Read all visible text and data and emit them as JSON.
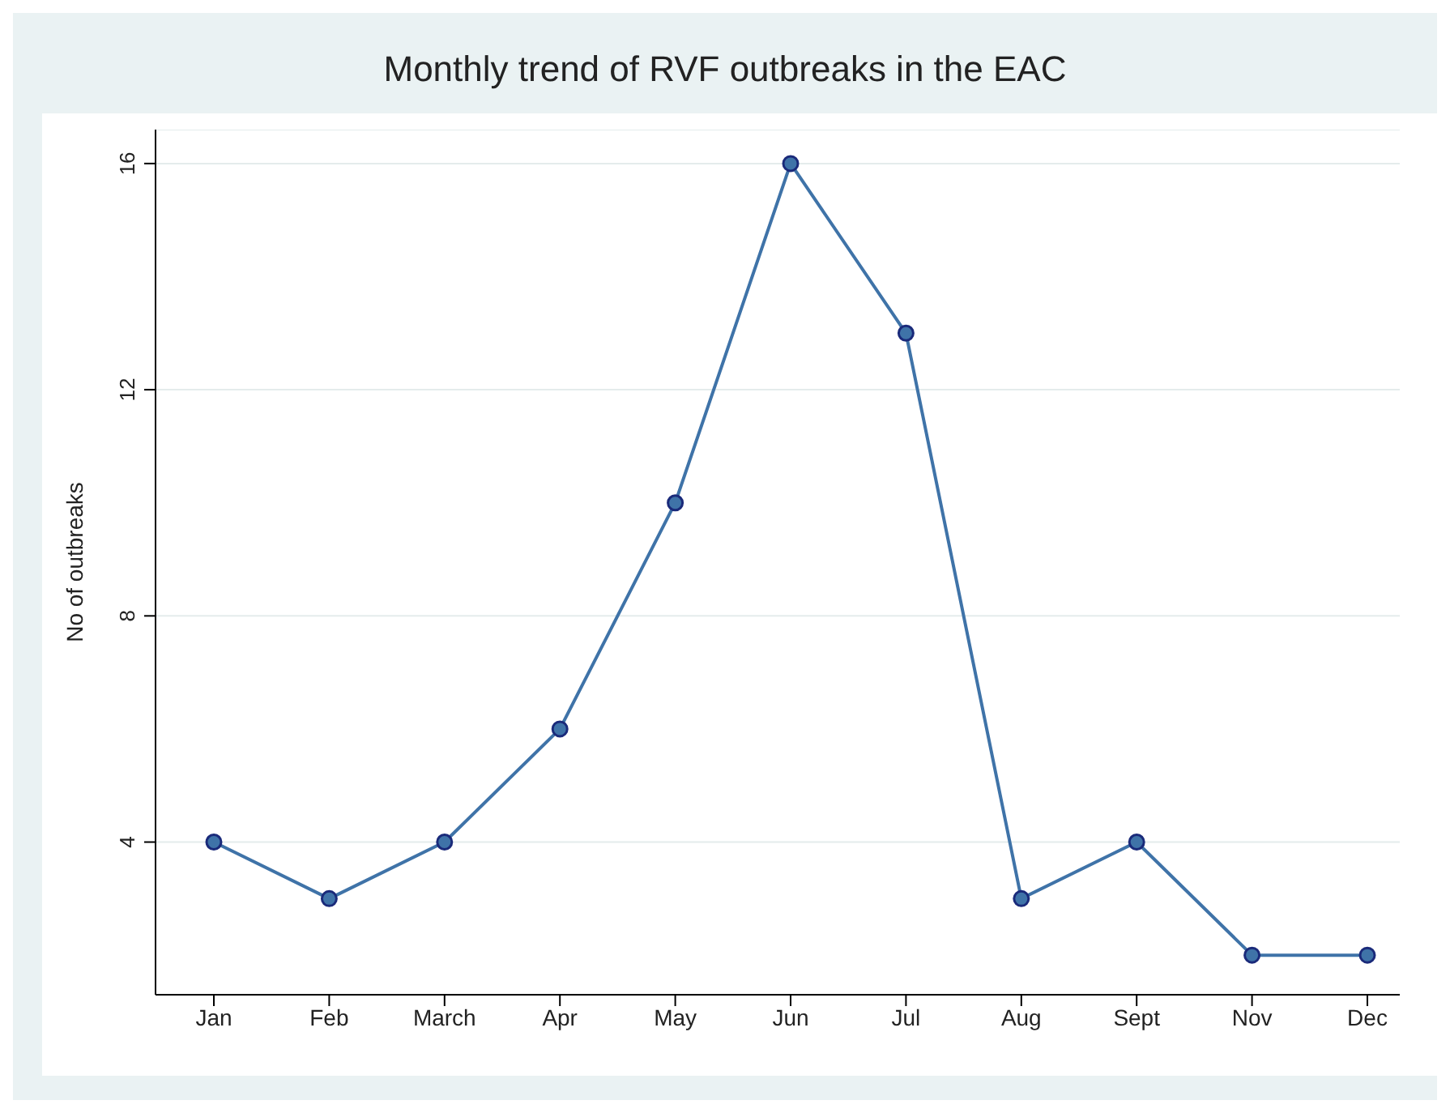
{
  "chart_data": {
    "type": "line",
    "title": "Monthly trend of RVF outbreaks in the EAC",
    "ylabel": "No of outbreaks",
    "categories": [
      "Jan",
      "Feb",
      "March",
      "Apr",
      "May",
      "Jun",
      "Jul",
      "Aug",
      "Sept",
      "Nov",
      "Dec"
    ],
    "series": [
      {
        "color": "#3f73a8",
        "values": [
          4,
          3,
          4,
          6,
          10,
          16,
          13,
          3,
          4,
          2,
          2
        ]
      }
    ],
    "ylim": [
      1.3,
      16.6
    ],
    "yticks": [
      4,
      8,
      12,
      16
    ],
    "grid": "y",
    "marker": "circle",
    "line_style": "solid"
  }
}
